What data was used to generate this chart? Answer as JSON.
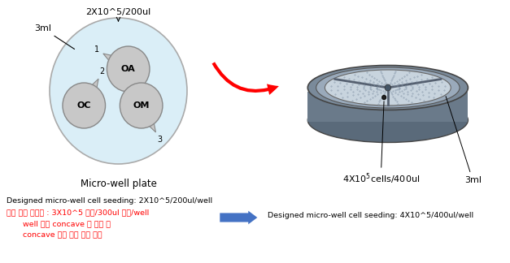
{
  "bg_color": "#ffffff",
  "left_label": "Micro-well plate",
  "annotation_3ml_left": "3ml",
  "annotation_2x": "2X10^5/200ul",
  "dish_fill": "#daeef7",
  "dish_stroke": "#aaaaaa",
  "well_fill": "#c8c8c8",
  "well_stroke": "#888888",
  "bottom_line1": "Designed micro-well cell seeding: 2X10^5/200ul/well",
  "bottom_line2": "개선 필요 디자인 : 3X10^5 이상/300ul 이상/well",
  "bottom_line3": "well 안의 concave 수 증가 및",
  "bottom_line4": "concave 간의 간격 조절 필요",
  "bottom_right": "Designed micro-well cell seeding: 4X10^5/400ul/well",
  "right_cells_label": "4X10$^5$cells/400ul",
  "right_3ml_label": "3ml"
}
